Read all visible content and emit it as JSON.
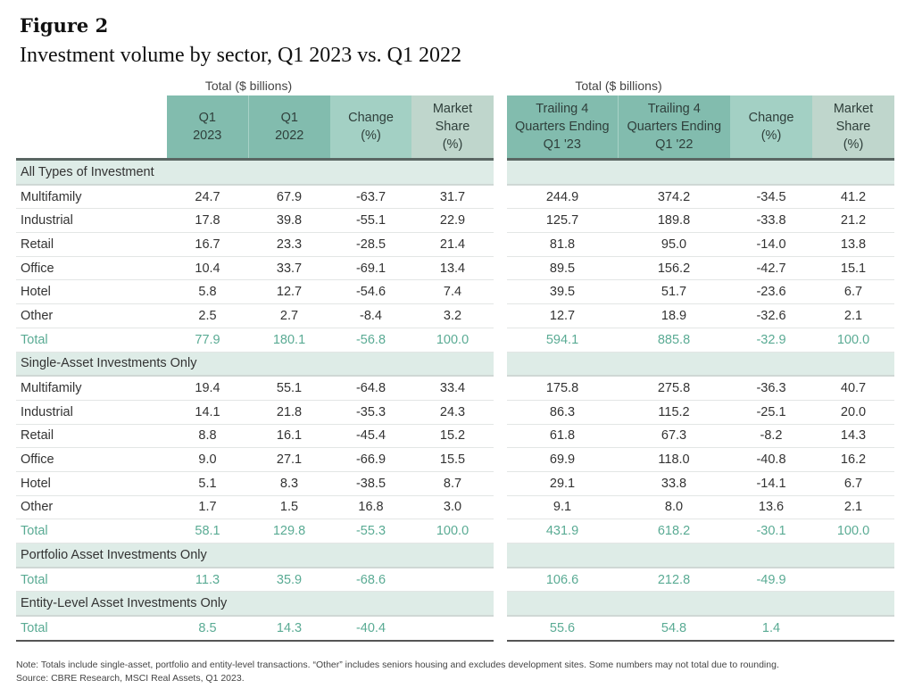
{
  "figure_label": "Figure 2",
  "title": "Investment volume by sector, Q1 2023 vs. Q1 2022",
  "colors": {
    "header_dark": "#82bcae",
    "header_mid": "#a3d0c4",
    "header_light": "#bfd6cc",
    "section_band": "#deece7",
    "total_text": "#5aab94"
  },
  "chart_data": {
    "type": "table",
    "left_group_label": "Total ($ billions)",
    "right_group_label": "Total ($ billions)",
    "left_headers": [
      "Q1\n2023",
      "Q1\n2022",
      "Change\n(%)",
      "Market\nShare\n(%)"
    ],
    "right_headers": [
      "Trailing 4\nQuarters Ending\nQ1 '23",
      "Trailing 4\nQuarters Ending\nQ1 '22",
      "Change\n(%)",
      "Market\nShare\n(%)"
    ],
    "rows": [
      {
        "kind": "section",
        "label": "All Types of Investment",
        "left": [
          "",
          "",
          "",
          ""
        ],
        "right": [
          "",
          "",
          "",
          ""
        ]
      },
      {
        "kind": "data",
        "label": "Multifamily",
        "left": [
          "24.7",
          "67.9",
          "-63.7",
          "31.7"
        ],
        "right": [
          "244.9",
          "374.2",
          "-34.5",
          "41.2"
        ]
      },
      {
        "kind": "data",
        "label": "Industrial",
        "left": [
          "17.8",
          "39.8",
          "-55.1",
          "22.9"
        ],
        "right": [
          "125.7",
          "189.8",
          "-33.8",
          "21.2"
        ]
      },
      {
        "kind": "data",
        "label": "Retail",
        "left": [
          "16.7",
          "23.3",
          "-28.5",
          "21.4"
        ],
        "right": [
          "81.8",
          "95.0",
          "-14.0",
          "13.8"
        ]
      },
      {
        "kind": "data",
        "label": "Office",
        "left": [
          "10.4",
          "33.7",
          "-69.1",
          "13.4"
        ],
        "right": [
          "89.5",
          "156.2",
          "-42.7",
          "15.1"
        ]
      },
      {
        "kind": "data",
        "label": "Hotel",
        "left": [
          "5.8",
          "12.7",
          "-54.6",
          "7.4"
        ],
        "right": [
          "39.5",
          "51.7",
          "-23.6",
          "6.7"
        ]
      },
      {
        "kind": "data",
        "label": "Other",
        "left": [
          "2.5",
          "2.7",
          "-8.4",
          "3.2"
        ],
        "right": [
          "12.7",
          "18.9",
          "-32.6",
          "2.1"
        ]
      },
      {
        "kind": "total",
        "label": "Total",
        "left": [
          "77.9",
          "180.1",
          "-56.8",
          "100.0"
        ],
        "right": [
          "594.1",
          "885.8",
          "-32.9",
          "100.0"
        ]
      },
      {
        "kind": "section",
        "label": "Single-Asset Investments Only",
        "left": [
          "",
          "",
          "",
          ""
        ],
        "right": [
          "",
          "",
          "",
          ""
        ]
      },
      {
        "kind": "data",
        "label": "Multifamily",
        "left": [
          "19.4",
          "55.1",
          "-64.8",
          "33.4"
        ],
        "right": [
          "175.8",
          "275.8",
          "-36.3",
          "40.7"
        ]
      },
      {
        "kind": "data",
        "label": "Industrial",
        "left": [
          "14.1",
          "21.8",
          "-35.3",
          "24.3"
        ],
        "right": [
          "86.3",
          "115.2",
          "-25.1",
          "20.0"
        ]
      },
      {
        "kind": "data",
        "label": "Retail",
        "left": [
          "8.8",
          "16.1",
          "-45.4",
          "15.2"
        ],
        "right": [
          "61.8",
          "67.3",
          "-8.2",
          "14.3"
        ]
      },
      {
        "kind": "data",
        "label": "Office",
        "left": [
          "9.0",
          "27.1",
          "-66.9",
          "15.5"
        ],
        "right": [
          "69.9",
          "118.0",
          "-40.8",
          "16.2"
        ]
      },
      {
        "kind": "data",
        "label": "Hotel",
        "left": [
          "5.1",
          "8.3",
          "-38.5",
          "8.7"
        ],
        "right": [
          "29.1",
          "33.8",
          "-14.1",
          "6.7"
        ]
      },
      {
        "kind": "data",
        "label": "Other",
        "left": [
          "1.7",
          "1.5",
          "16.8",
          "3.0"
        ],
        "right": [
          "9.1",
          "8.0",
          "13.6",
          "2.1"
        ]
      },
      {
        "kind": "total",
        "label": "Total",
        "left": [
          "58.1",
          "129.8",
          "-55.3",
          "100.0"
        ],
        "right": [
          "431.9",
          "618.2",
          "-30.1",
          "100.0"
        ]
      },
      {
        "kind": "section",
        "label": "Portfolio Asset Investments Only",
        "left": [
          "",
          "",
          "",
          ""
        ],
        "right": [
          "",
          "",
          "",
          ""
        ]
      },
      {
        "kind": "total",
        "label": "Total",
        "left": [
          "11.3",
          "35.9",
          "-68.6",
          ""
        ],
        "right": [
          "106.6",
          "212.8",
          "-49.9",
          ""
        ]
      },
      {
        "kind": "section",
        "label": "Entity-Level Asset Investments Only",
        "left": [
          "",
          "",
          "",
          ""
        ],
        "right": [
          "",
          "",
          "",
          ""
        ]
      },
      {
        "kind": "total",
        "label": "Total",
        "left": [
          "8.5",
          "14.3",
          "-40.4",
          ""
        ],
        "right": [
          "55.6",
          "54.8",
          "1.4",
          ""
        ]
      }
    ]
  },
  "notes": {
    "note": "Note: Totals include single-asset, portfolio and entity-level transactions. “Other” includes seniors housing and excludes development sites. Some numbers may not total due to rounding.",
    "source": "Source: CBRE Research, MSCI Real Assets, Q1 2023."
  }
}
